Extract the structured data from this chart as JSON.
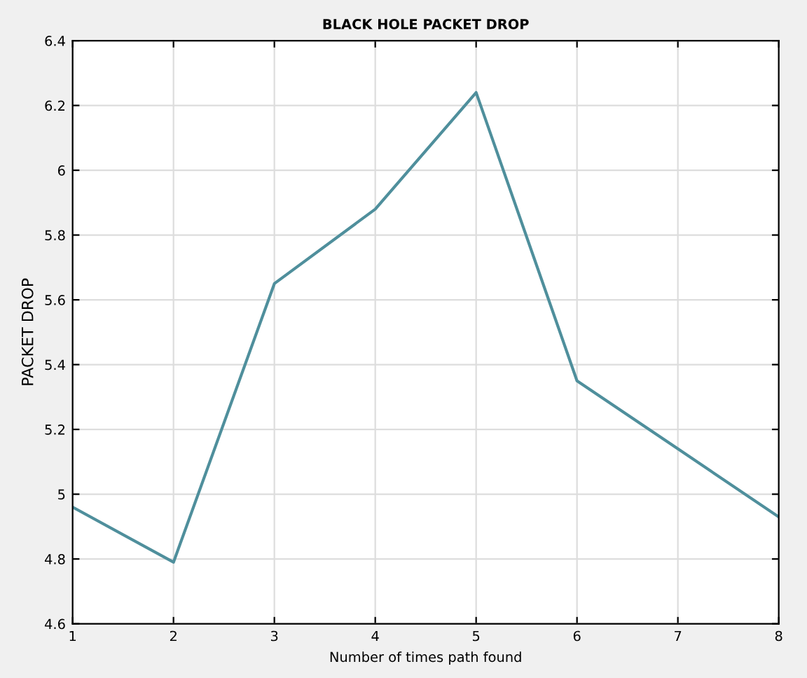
{
  "chart_data": {
    "type": "line",
    "title": "BLACK HOLE PACKET DROP",
    "xlabel": "Number of times path found",
    "ylabel": "PACKET DROP",
    "x": [
      1,
      2,
      3,
      4,
      5,
      6,
      7,
      8
    ],
    "series": [
      {
        "color": "#4f8f9c",
        "values": [
          4.96,
          4.79,
          5.65,
          5.88,
          6.24,
          5.35,
          5.14,
          4.93
        ]
      }
    ],
    "xlim": [
      1,
      8
    ],
    "xticks": [
      1,
      2,
      3,
      4,
      5,
      6,
      7,
      8
    ],
    "ylim": [
      4.6,
      6.4
    ],
    "yticks": [
      4.6,
      4.8,
      5,
      5.2,
      5.4,
      5.6,
      5.8,
      6,
      6.2,
      6.4
    ],
    "grid": true,
    "marker": "none",
    "line_style": "solid"
  }
}
